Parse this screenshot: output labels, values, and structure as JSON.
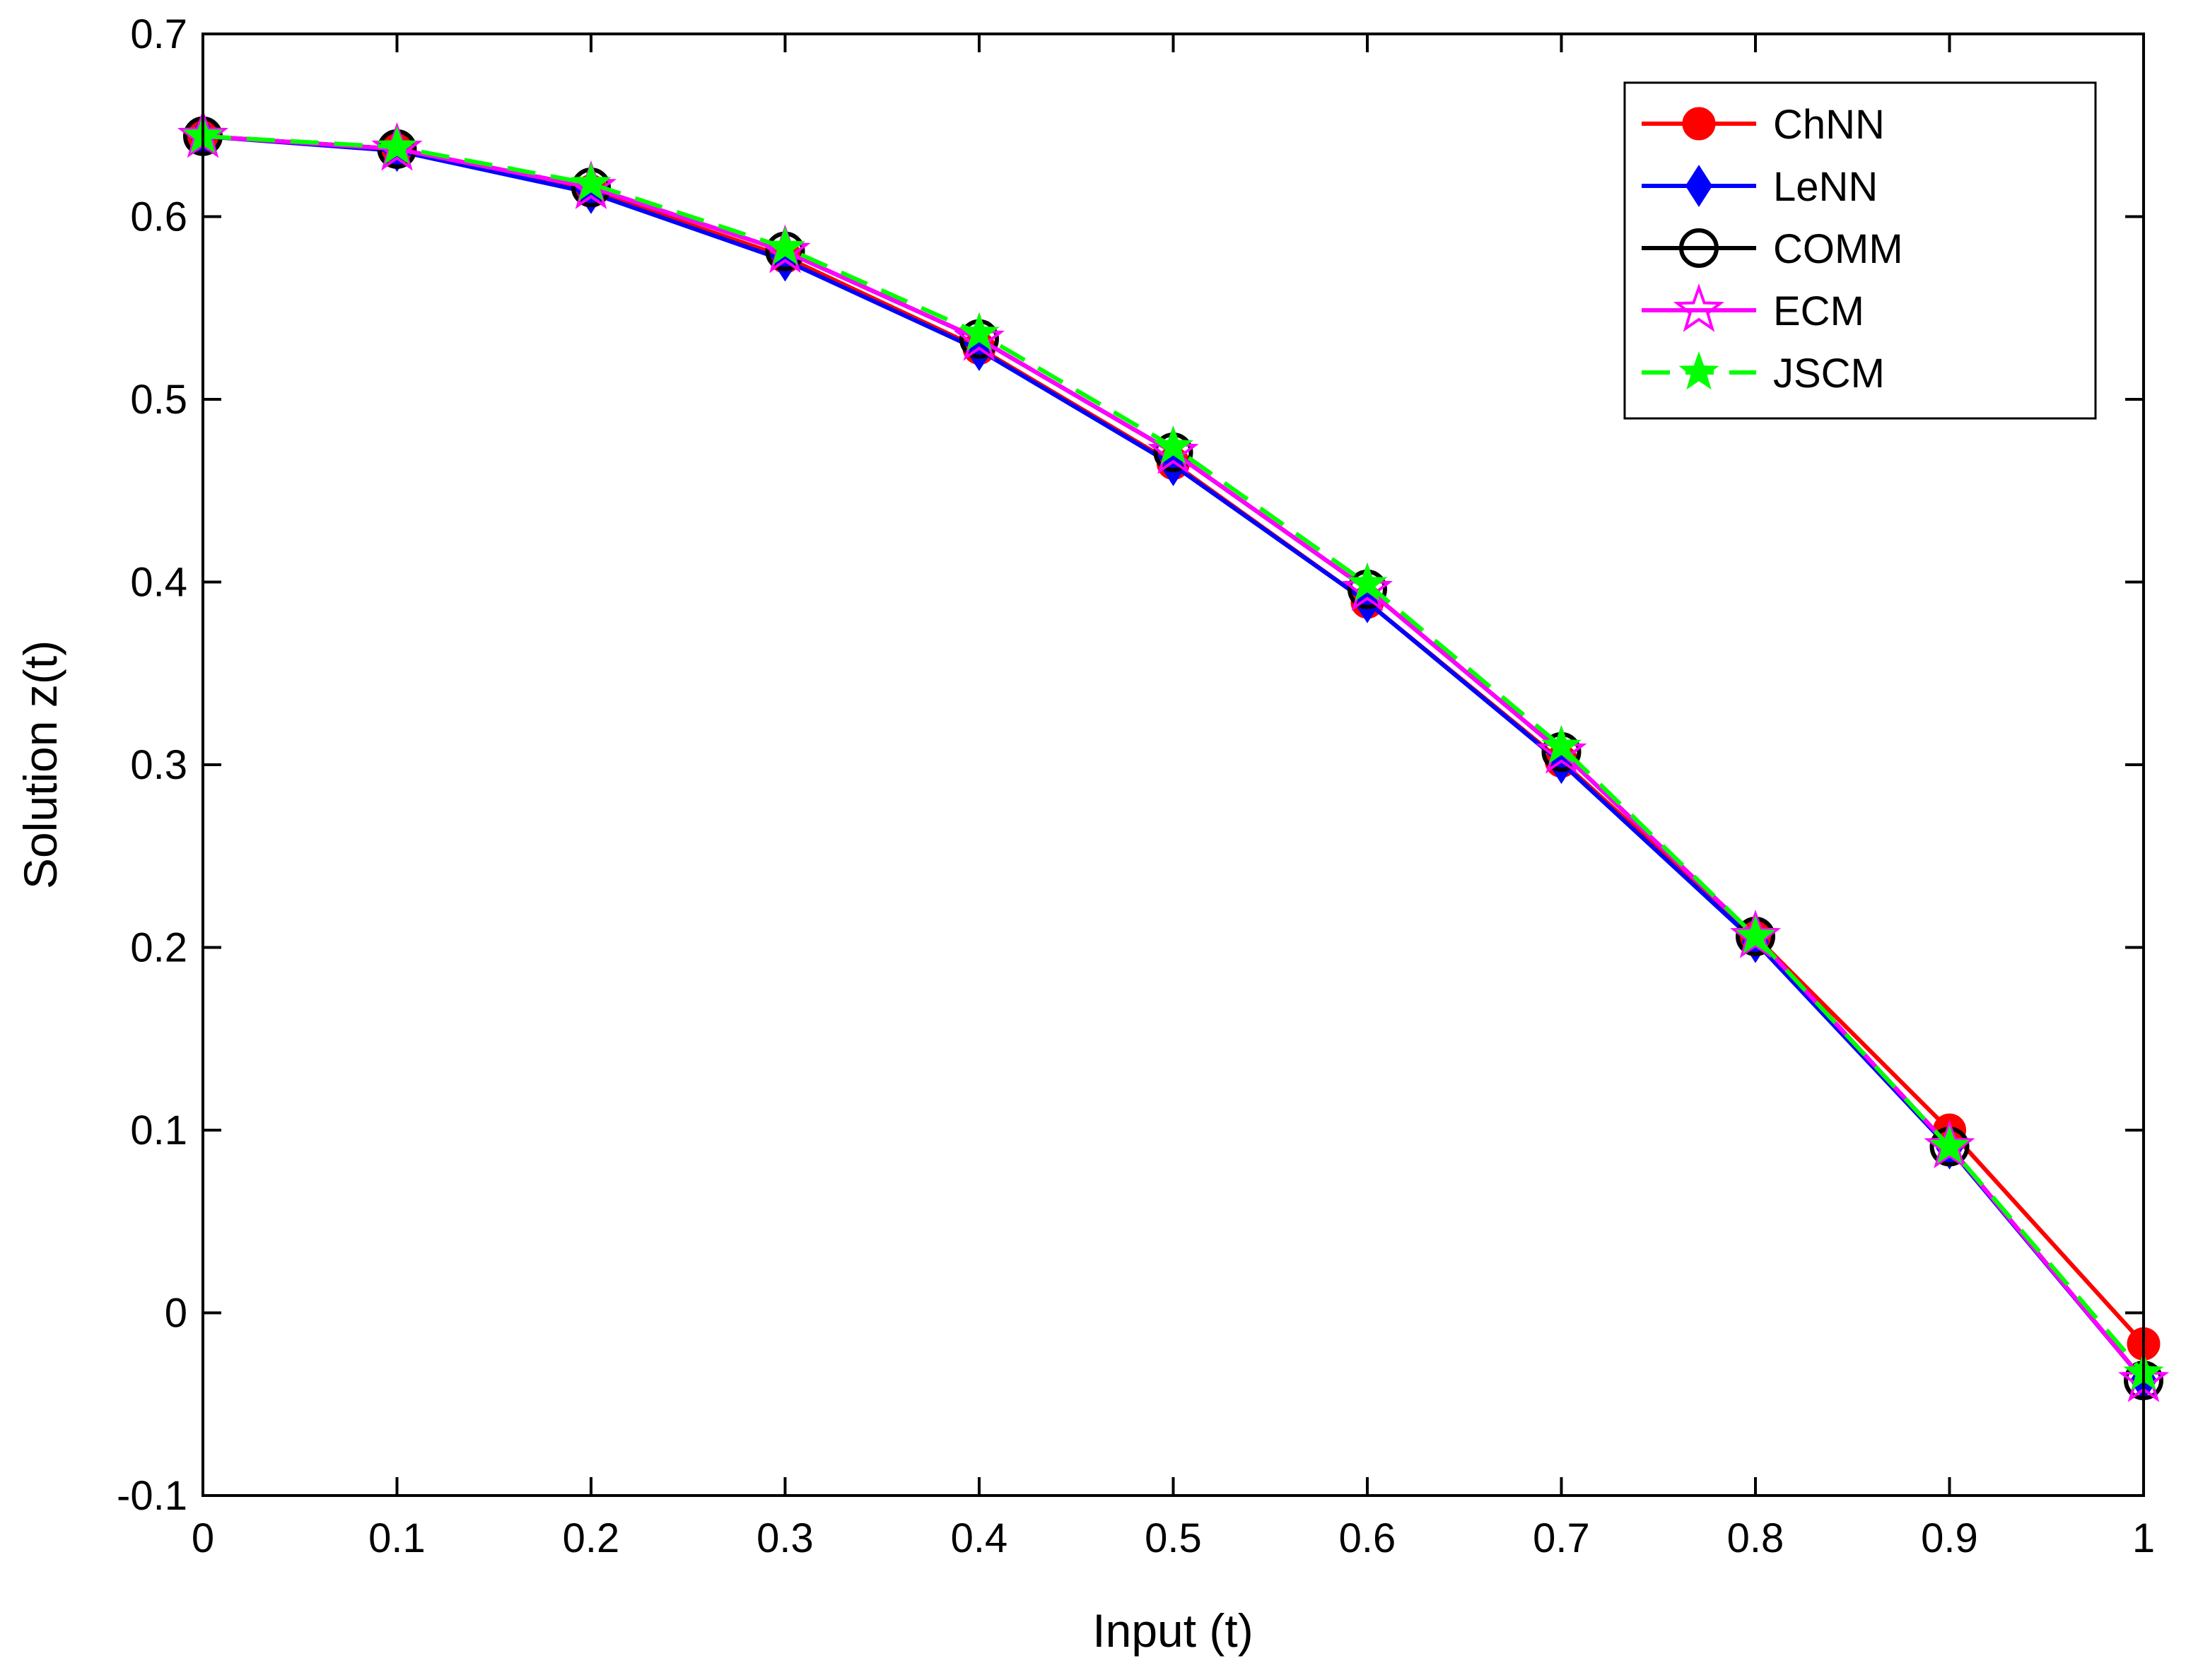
{
  "chart_data": {
    "type": "line",
    "xlabel": "Input (t)",
    "ylabel": "Solution z(t)",
    "xlim": [
      0,
      1
    ],
    "ylim": [
      -0.1,
      0.7
    ],
    "xticks": [
      "0",
      "0.1",
      "0.2",
      "0.3",
      "0.4",
      "0.5",
      "0.6",
      "0.7",
      "0.8",
      "0.9",
      "1"
    ],
    "yticks": [
      "-0.1",
      "0",
      "0.1",
      "0.2",
      "0.3",
      "0.4",
      "0.5",
      "0.6",
      "0.7"
    ],
    "x": [
      0,
      0.1,
      0.2,
      0.3,
      0.4,
      0.5,
      0.6,
      0.7,
      0.8,
      0.9,
      1.0
    ],
    "grid": false,
    "legend_position": "top-right",
    "series": [
      {
        "name": "ChNN",
        "color": "#ff0000",
        "marker": "circle-filled",
        "line": "solid",
        "values": [
          0.644,
          0.637,
          0.614,
          0.578,
          0.528,
          0.465,
          0.389,
          0.302,
          0.206,
          0.1,
          -0.017
        ]
      },
      {
        "name": "LeNN",
        "color": "#0000ff",
        "marker": "diamond-filled",
        "line": "solid",
        "values": [
          0.644,
          0.636,
          0.613,
          0.576,
          0.527,
          0.464,
          0.389,
          0.301,
          0.203,
          0.09,
          -0.037
        ]
      },
      {
        "name": "COMM",
        "color": "#000000",
        "marker": "circle-open",
        "line": "solid",
        "values": [
          0.644,
          0.637,
          0.616,
          0.581,
          0.533,
          0.471,
          0.396,
          0.307,
          0.206,
          0.091,
          -0.037
        ]
      },
      {
        "name": "ECM",
        "color": "#ff00ff",
        "marker": "star-open",
        "line": "solid",
        "values": [
          0.644,
          0.637,
          0.616,
          0.581,
          0.533,
          0.471,
          0.396,
          0.307,
          0.206,
          0.091,
          -0.037
        ]
      },
      {
        "name": "JSCM",
        "color": "#00ff00",
        "marker": "star-filled",
        "line": "dashed",
        "values": [
          0.644,
          0.638,
          0.618,
          0.583,
          0.536,
          0.474,
          0.399,
          0.31,
          0.206,
          0.091,
          -0.033
        ]
      }
    ]
  }
}
